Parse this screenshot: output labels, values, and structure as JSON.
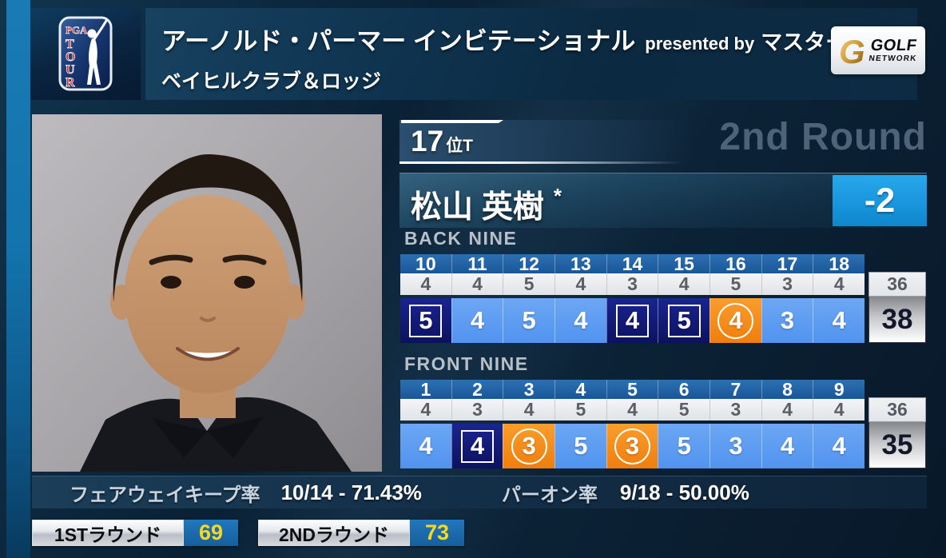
{
  "header": {
    "pga_logo": {
      "top": "PGA",
      "letters": [
        "T",
        "O",
        "U",
        "R"
      ]
    },
    "title_main": "アーノルド・パーマー インビテーショナル",
    "title_presented": "presented by",
    "title_sponsor": "マスターカード",
    "subtitle": "ベイヒルクラブ＆ロッジ",
    "network_logo": {
      "line1": "GOLF",
      "line2": "NETWORK"
    }
  },
  "player": {
    "rank_number": "17",
    "rank_suffix": "位T",
    "round_label": "2nd Round",
    "name": "松山 英樹",
    "asterisk": "*",
    "total_score": "-2"
  },
  "scorecards": [
    {
      "label": "BACK NINE",
      "holes": [
        "10",
        "11",
        "12",
        "13",
        "14",
        "15",
        "16",
        "17",
        "18"
      ],
      "pars": [
        "4",
        "4",
        "5",
        "4",
        "3",
        "4",
        "5",
        "3",
        "4"
      ],
      "par_total": "36",
      "scores": [
        {
          "value": "5",
          "type": "bogey"
        },
        {
          "value": "4",
          "type": "par"
        },
        {
          "value": "5",
          "type": "par"
        },
        {
          "value": "4",
          "type": "par"
        },
        {
          "value": "4",
          "type": "bogey"
        },
        {
          "value": "5",
          "type": "bogey"
        },
        {
          "value": "4",
          "type": "birdie"
        },
        {
          "value": "3",
          "type": "par"
        },
        {
          "value": "4",
          "type": "par"
        }
      ],
      "score_total": "38"
    },
    {
      "label": "FRONT NINE",
      "holes": [
        "1",
        "2",
        "3",
        "4",
        "5",
        "6",
        "7",
        "8",
        "9"
      ],
      "pars": [
        "4",
        "3",
        "4",
        "5",
        "4",
        "5",
        "3",
        "4",
        "4"
      ],
      "par_total": "36",
      "scores": [
        {
          "value": "4",
          "type": "par"
        },
        {
          "value": "4",
          "type": "bogey"
        },
        {
          "value": "3",
          "type": "birdie"
        },
        {
          "value": "5",
          "type": "par"
        },
        {
          "value": "3",
          "type": "birdie"
        },
        {
          "value": "5",
          "type": "par"
        },
        {
          "value": "3",
          "type": "par"
        },
        {
          "value": "4",
          "type": "par"
        },
        {
          "value": "4",
          "type": "par"
        }
      ],
      "score_total": "35"
    }
  ],
  "stats": {
    "fairway_label": "フェアウェイキープ率",
    "fairway_value": "10/14 - 71.43%",
    "gir_label": "パーオン率",
    "gir_value": "9/18 - 50.00%"
  },
  "rounds": [
    {
      "label": "1STラウンド",
      "score": "69"
    },
    {
      "label": "2NDラウンド",
      "score": "73"
    }
  ],
  "colors": {
    "accent_blue": "#189ae0",
    "par_cell": "#5596f0",
    "bogey_cell": "#101a78",
    "birdie_cell": "#f78f1e",
    "hole_header": "#1f5fa6",
    "round_score_yellow": "#f6d823",
    "round_text_gray": "#4f6378"
  }
}
